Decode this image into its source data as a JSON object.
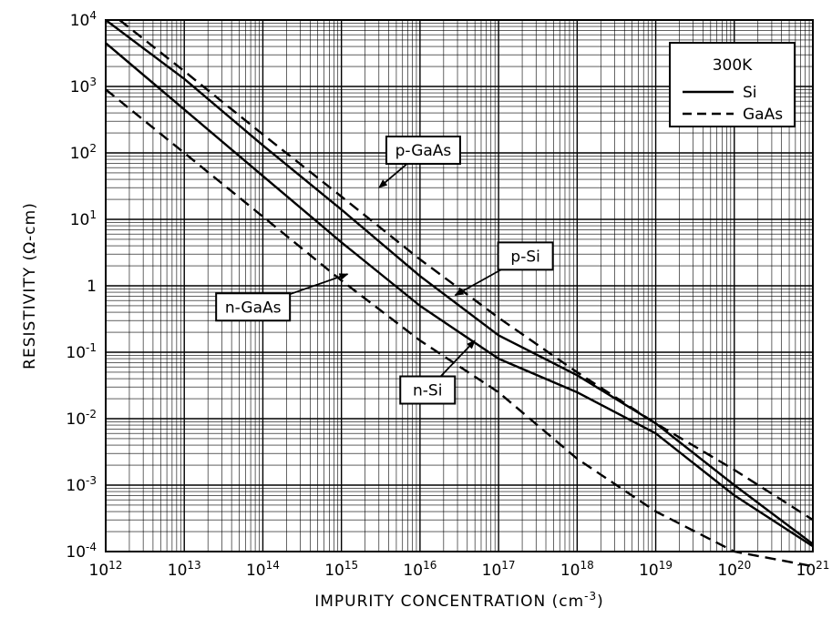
{
  "chart_data": {
    "type": "line",
    "title": "",
    "xlabel": "IMPURITY CONCENTRATION (cm",
    "xlabel_exponent": "-3",
    "xlabel_close": ")",
    "ylabel": "RESISTIVITY (Ω-cm)",
    "x_scale": "log",
    "y_scale": "log",
    "xlim": [
      1000000000000.0,
      1e+21
    ],
    "ylim": [
      0.0001,
      10000.0
    ],
    "grid": true,
    "x_ticks": [
      {
        "value": 1000000000000.0,
        "base": "10",
        "exp": "12"
      },
      {
        "value": 10000000000000.0,
        "base": "10",
        "exp": "13"
      },
      {
        "value": 100000000000000.0,
        "base": "10",
        "exp": "14"
      },
      {
        "value": 1000000000000000.0,
        "base": "10",
        "exp": "15"
      },
      {
        "value": 1e+16,
        "base": "10",
        "exp": "16"
      },
      {
        "value": 1e+17,
        "base": "10",
        "exp": "17"
      },
      {
        "value": 1e+18,
        "base": "10",
        "exp": "18"
      },
      {
        "value": 1e+19,
        "base": "10",
        "exp": "19"
      },
      {
        "value": 1e+20,
        "base": "10",
        "exp": "20"
      },
      {
        "value": 1e+21,
        "base": "10",
        "exp": "21"
      }
    ],
    "y_ticks": [
      {
        "value": 10000.0,
        "base": "10",
        "exp": "4"
      },
      {
        "value": 1000.0,
        "base": "10",
        "exp": "3"
      },
      {
        "value": 100.0,
        "base": "10",
        "exp": "2"
      },
      {
        "value": 10.0,
        "base": "10",
        "exp": "1"
      },
      {
        "value": 1,
        "base": "1",
        "exp": ""
      },
      {
        "value": 0.1,
        "base": "10",
        "exp": "-1"
      },
      {
        "value": 0.01,
        "base": "10",
        "exp": "-2"
      },
      {
        "value": 0.001,
        "base": "10",
        "exp": "-3"
      },
      {
        "value": 0.0001,
        "base": "10",
        "exp": "-4"
      }
    ],
    "legend": {
      "placement": "top-right",
      "title": "300K",
      "entries": [
        {
          "label": "Si",
          "style": "solid"
        },
        {
          "label": "GaAs",
          "style": "dashed"
        }
      ]
    },
    "series": [
      {
        "name": "p-GaAs",
        "style": "dashed",
        "x": [
          1500000000000.0,
          10000000000000.0,
          100000000000000.0,
          1000000000000000.0,
          1e+16,
          1e+17,
          1e+18,
          1e+19,
          1e+20,
          1e+21
        ],
        "y": [
          10000,
          1700,
          190,
          22,
          2.5,
          0.33,
          0.05,
          0.0085,
          0.0017,
          0.0003
        ]
      },
      {
        "name": "p-Si",
        "style": "solid",
        "x": [
          1000000000000.0,
          10000000000000.0,
          100000000000000.0,
          1000000000000000.0,
          1e+16,
          1e+17,
          1e+18,
          1e+19,
          1e+20,
          1e+21
        ],
        "y": [
          10000,
          1300,
          130,
          14,
          1.4,
          0.18,
          0.045,
          0.0085,
          0.001,
          0.00013
        ]
      },
      {
        "name": "n-Si",
        "style": "solid",
        "x": [
          1000000000000.0,
          10000000000000.0,
          100000000000000.0,
          1000000000000000.0,
          1e+16,
          1e+17,
          1e+18,
          1e+19,
          1e+20,
          1e+21
        ],
        "y": [
          4500,
          450,
          45,
          4.5,
          0.5,
          0.08,
          0.025,
          0.006,
          0.0007,
          0.00012
        ]
      },
      {
        "name": "n-GaAs",
        "style": "dashed",
        "x": [
          1000000000000.0,
          10000000000000.0,
          100000000000000.0,
          1000000000000000.0,
          1e+16,
          1e+17,
          1e+18,
          1e+19,
          1e+20,
          1e+21
        ],
        "y": [
          900,
          100,
          11,
          1.2,
          0.15,
          0.025,
          0.0025,
          0.0004,
          0.0001,
          6e-05
        ]
      }
    ],
    "annotations": [
      {
        "text": "p-GaAs",
        "box_x": 1.1e+16,
        "box_y": 110,
        "arrow_x": 3000000000000000.0,
        "arrow_y": 30
      },
      {
        "text": "p-Si",
        "box_x": 2.2e+17,
        "box_y": 2.8,
        "arrow_x": 2.8e+16,
        "arrow_y": 0.72
      },
      {
        "text": "n-GaAs",
        "box_x": 75000000000000.0,
        "box_y": 0.48,
        "arrow_x": 1200000000000000.0,
        "arrow_y": 1.5
      },
      {
        "text": "n-Si",
        "box_x": 1.25e+16,
        "box_y": 0.027,
        "arrow_x": 5e+16,
        "arrow_y": 0.15
      }
    ]
  }
}
